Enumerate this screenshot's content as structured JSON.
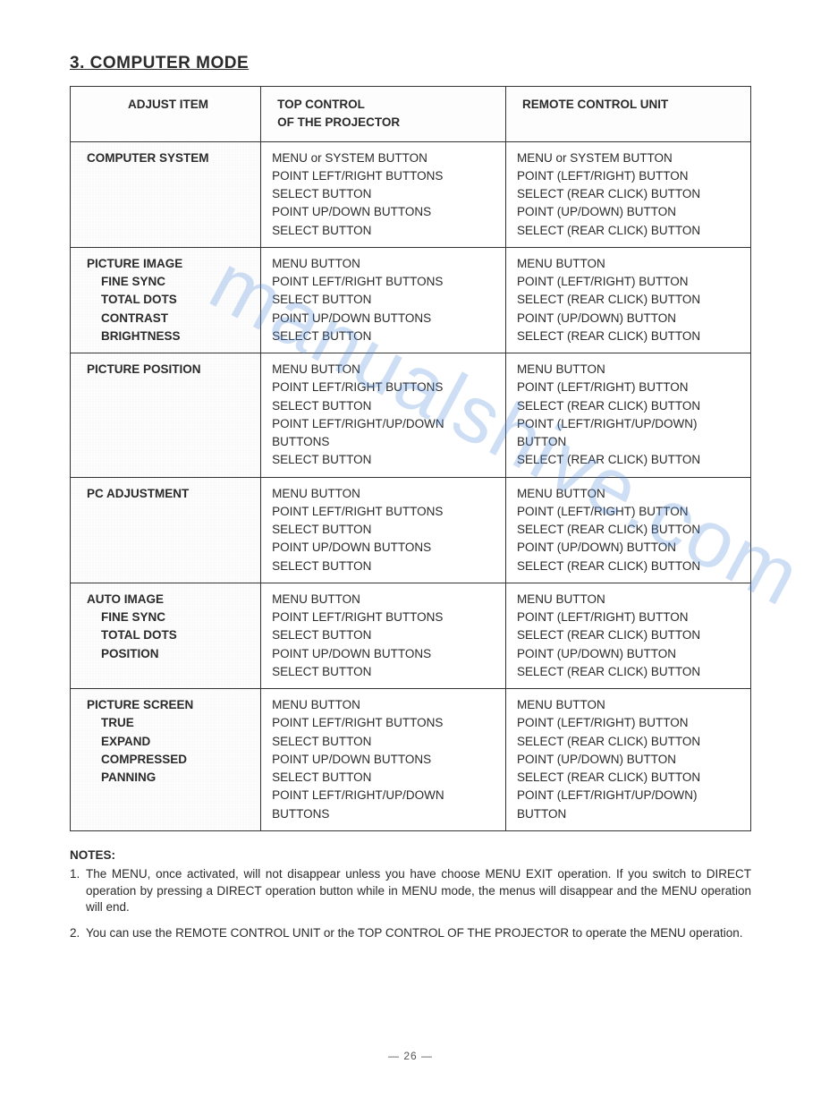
{
  "document": {
    "title": "3. COMPUTER MODE",
    "page_number": "— 26 —",
    "watermark_text": "manualshive.com",
    "font_family": "Arial, Helvetica, sans-serif",
    "colors": {
      "text": "#2a2a2a",
      "border": "#333333",
      "background": "#ffffff",
      "watermark": "rgba(80,140,220,0.28)"
    }
  },
  "table": {
    "headers": {
      "col1": "ADJUST ITEM",
      "col2_line1": "TOP CONTROL",
      "col2_line2": "OF THE PROJECTOR",
      "col3": "REMOTE CONTROL  UNIT"
    },
    "col_widths_pct": [
      28,
      36,
      36
    ],
    "rows": [
      {
        "adjust_main": "COMPUTER SYSTEM",
        "adjust_sub": [],
        "top": [
          "MENU or SYSTEM BUTTON",
          "POINT LEFT/RIGHT BUTTONS",
          "SELECT BUTTON",
          "POINT UP/DOWN BUTTONS",
          "SELECT BUTTON"
        ],
        "remote": [
          "MENU  or SYSTEM BUTTON",
          "POINT (LEFT/RIGHT) BUTTON",
          "SELECT (REAR CLICK) BUTTON",
          "POINT (UP/DOWN) BUTTON",
          "SELECT (REAR CLICK) BUTTON"
        ]
      },
      {
        "adjust_main": "PICTURE IMAGE",
        "adjust_sub": [
          "FINE SYNC",
          "TOTAL DOTS",
          "CONTRAST",
          "BRIGHTNESS"
        ],
        "top": [
          "MENU BUTTON",
          "POINT LEFT/RIGHT BUTTONS",
          "SELECT BUTTON",
          "POINT UP/DOWN BUTTONS",
          "SELECT BUTTON"
        ],
        "remote": [
          "MENU BUTTON",
          "POINT (LEFT/RIGHT) BUTTON",
          "SELECT (REAR CLICK) BUTTON",
          "POINT (UP/DOWN) BUTTON",
          "SELECT (REAR CLICK) BUTTON"
        ]
      },
      {
        "adjust_main": "PICTURE POSITION",
        "adjust_sub": [],
        "top": [
          "MENU BUTTON",
          "POINT LEFT/RIGHT BUTTONS",
          "SELECT BUTTON",
          "POINT LEFT/RIGHT/UP/DOWN BUTTONS",
          "SELECT BUTTON"
        ],
        "remote": [
          "MENU BUTTON",
          "POINT (LEFT/RIGHT) BUTTON",
          "SELECT (REAR CLICK) BUTTON",
          "POINT (LEFT/RIGHT/UP/DOWN) BUTTON",
          "SELECT (REAR CLICK) BUTTON"
        ]
      },
      {
        "adjust_main": "PC ADJUSTMENT",
        "adjust_sub": [],
        "top": [
          "MENU BUTTON",
          "POINT LEFT/RIGHT BUTTONS",
          "SELECT BUTTON",
          "POINT UP/DOWN BUTTONS",
          "SELECT BUTTON"
        ],
        "remote": [
          "MENU BUTTON",
          "POINT (LEFT/RIGHT) BUTTON",
          "SELECT (REAR CLICK) BUTTON",
          "POINT (UP/DOWN) BUTTON",
          "SELECT (REAR CLICK) BUTTON"
        ]
      },
      {
        "adjust_main": "AUTO IMAGE",
        "adjust_sub": [
          "FINE SYNC",
          "TOTAL DOTS",
          "POSITION"
        ],
        "top": [
          "MENU BUTTON",
          "POINT LEFT/RIGHT BUTTONS",
          "SELECT BUTTON",
          "POINT UP/DOWN BUTTONS",
          "SELECT BUTTON"
        ],
        "remote": [
          "MENU BUTTON",
          "POINT (LEFT/RIGHT) BUTTON",
          "SELECT (REAR CLICK) BUTTON",
          "POINT (UP/DOWN) BUTTON",
          "SELECT (REAR CLICK) BUTTON"
        ]
      },
      {
        "adjust_main": "PICTURE SCREEN",
        "adjust_sub": [
          "TRUE",
          "EXPAND",
          "COMPRESSED",
          "PANNING"
        ],
        "top": [
          "MENU BUTTON",
          "POINT LEFT/RIGHT BUTTONS",
          "SELECT BUTTON",
          "POINT UP/DOWN BUTTONS",
          "SELECT BUTTON",
          "POINT LEFT/RIGHT/UP/DOWN BUTTONS"
        ],
        "remote": [
          "MENU BUTTON",
          "POINT (LEFT/RIGHT) BUTTON",
          "SELECT (REAR CLICK) BUTTON",
          "POINT (UP/DOWN) BUTTON",
          "SELECT (REAR CLICK) BUTTON",
          "POINT (LEFT/RIGHT/UP/DOWN) BUTTON"
        ]
      }
    ]
  },
  "notes": {
    "heading": "NOTES:",
    "items": [
      {
        "num": "1.",
        "text": "The MENU, once activated, will not disappear unless you have choose MENU EXIT operation. If you switch to DIRECT operation by pressing a DIRECT operation button while in MENU mode, the menus will disappear and the MENU operation will end."
      },
      {
        "num": "2.",
        "text": "You can use the REMOTE CONTROL UNIT or the TOP CONTROL OF THE PROJECTOR to operate the MENU operation."
      }
    ]
  }
}
